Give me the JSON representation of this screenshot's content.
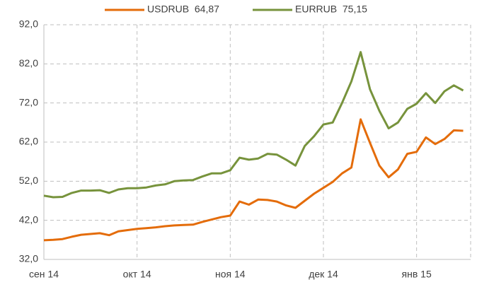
{
  "chart_data": {
    "type": "line",
    "categories": [
      "сен 14",
      null,
      null,
      null,
      null,
      null,
      null,
      null,
      null,
      null,
      "окт 14",
      null,
      null,
      null,
      null,
      null,
      null,
      null,
      null,
      null,
      "ноя 14",
      null,
      null,
      null,
      null,
      null,
      null,
      null,
      null,
      null,
      "дек 14",
      null,
      null,
      null,
      null,
      null,
      null,
      null,
      null,
      null,
      "янв 15",
      null,
      null,
      null,
      null,
      null
    ],
    "series": [
      {
        "name": "USDRUB  64,87",
        "color": "#e46c0a",
        "values": [
          36.9,
          37.0,
          37.2,
          37.8,
          38.3,
          38.5,
          38.7,
          38.2,
          39.2,
          39.5,
          39.8,
          40.0,
          40.2,
          40.5,
          40.7,
          40.8,
          40.9,
          41.6,
          42.2,
          42.8,
          43.2,
          46.8,
          46.0,
          47.3,
          47.2,
          46.8,
          45.8,
          45.2,
          47.0,
          48.8,
          50.3,
          51.8,
          54.0,
          55.5,
          67.8,
          61.8,
          56.0,
          53.0,
          55.0,
          59.0,
          59.5,
          63.2,
          61.5,
          62.8,
          65.0,
          64.9
        ]
      },
      {
        "name": "EURRUB  75,15",
        "color": "#77933c",
        "values": [
          48.3,
          47.9,
          48.0,
          49.0,
          49.6,
          49.6,
          49.7,
          49.0,
          49.9,
          50.2,
          50.2,
          50.4,
          50.9,
          51.2,
          52.0,
          52.2,
          52.3,
          53.2,
          54.0,
          54.0,
          54.8,
          58.0,
          57.5,
          57.8,
          59.0,
          58.8,
          57.5,
          56.0,
          61.0,
          63.5,
          66.5,
          67.0,
          72.0,
          77.5,
          85.0,
          75.5,
          70.0,
          65.5,
          67.0,
          70.5,
          71.8,
          74.5,
          72.0,
          75.0,
          76.5,
          75.2
        ]
      }
    ],
    "ylim": [
      32,
      92
    ],
    "yticks": [
      {
        "value": 32,
        "label": "32,0"
      },
      {
        "value": 42,
        "label": "42,0"
      },
      {
        "value": 52,
        "label": "52,0"
      },
      {
        "value": 62,
        "label": "62,0"
      },
      {
        "value": 72,
        "label": "72,0"
      },
      {
        "value": 82,
        "label": "82,0"
      },
      {
        "value": 92,
        "label": "92,0"
      }
    ],
    "grid": true,
    "legend": "top"
  }
}
